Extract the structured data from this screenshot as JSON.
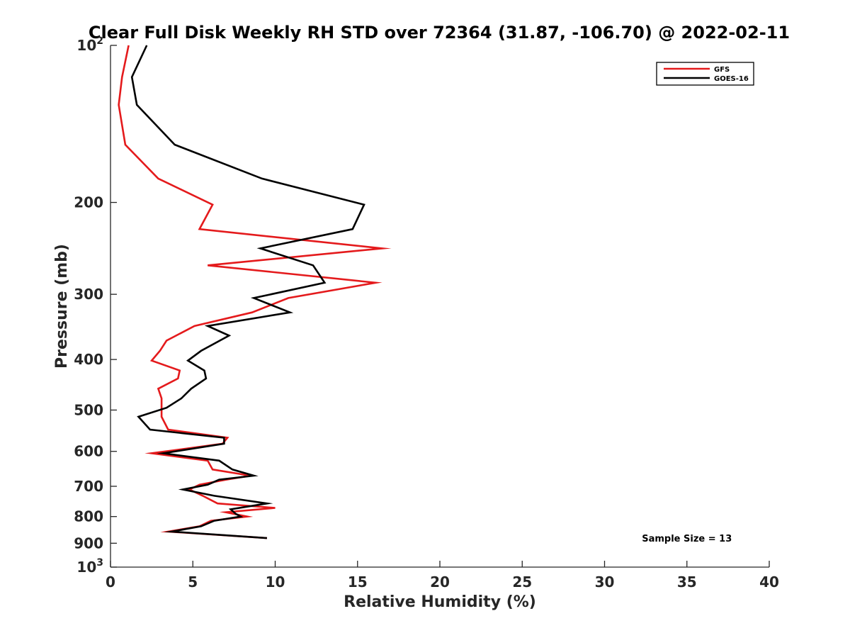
{
  "chart_data": {
    "type": "line",
    "title": "Clear Full Disk Weekly RH STD over 72364 (31.87, -106.70) @ 2022-02-11",
    "xlabel": "Relative Humidity (%)",
    "ylabel": "Pressure (mb)",
    "xlim": [
      0,
      40
    ],
    "ylim": [
      100,
      1000
    ],
    "y_scale": "log",
    "y_reversed": true,
    "x_ticks": [
      {
        "value": 0,
        "label": "0"
      },
      {
        "value": 5,
        "label": "5"
      },
      {
        "value": 10,
        "label": "10"
      },
      {
        "value": 15,
        "label": "15"
      },
      {
        "value": 20,
        "label": "20"
      },
      {
        "value": 25,
        "label": "25"
      },
      {
        "value": 30,
        "label": "30"
      },
      {
        "value": 35,
        "label": "35"
      },
      {
        "value": 40,
        "label": "40"
      }
    ],
    "y_ticks": [
      {
        "value": 100,
        "base": "10",
        "exp": "2"
      },
      {
        "value": 200,
        "label": "200"
      },
      {
        "value": 300,
        "label": "300"
      },
      {
        "value": 400,
        "label": "400"
      },
      {
        "value": 500,
        "label": "500"
      },
      {
        "value": 600,
        "label": "600"
      },
      {
        "value": 700,
        "label": "700"
      },
      {
        "value": 800,
        "label": "800"
      },
      {
        "value": 900,
        "label": "900"
      },
      {
        "value": 1000,
        "base": "10",
        "exp": "3"
      }
    ],
    "legend_position": "top-right",
    "grid": false,
    "series": [
      {
        "name": "GFS",
        "color": "#e41a1c",
        "points": [
          [
            1.1,
            100
          ],
          [
            0.7,
            115
          ],
          [
            0.5,
            130
          ],
          [
            0.9,
            155
          ],
          [
            2.9,
            180
          ],
          [
            6.2,
            202
          ],
          [
            5.4,
            225
          ],
          [
            16.5,
            245
          ],
          [
            5.9,
            264
          ],
          [
            16.1,
            285
          ],
          [
            10.8,
            305
          ],
          [
            8.6,
            325
          ],
          [
            5.1,
            345
          ],
          [
            3.4,
            368
          ],
          [
            3.0,
            385
          ],
          [
            2.5,
            402
          ],
          [
            4.2,
            420
          ],
          [
            4.1,
            435
          ],
          [
            2.9,
            455
          ],
          [
            3.1,
            475
          ],
          [
            3.1,
            495
          ],
          [
            3.1,
            515
          ],
          [
            3.5,
            545
          ],
          [
            7.1,
            565
          ],
          [
            6.8,
            580
          ],
          [
            2.5,
            605
          ],
          [
            5.9,
            625
          ],
          [
            6.2,
            650
          ],
          [
            8.5,
            668
          ],
          [
            7.0,
            680
          ],
          [
            5.4,
            695
          ],
          [
            4.8,
            710
          ],
          [
            5.6,
            730
          ],
          [
            6.5,
            755
          ],
          [
            10.0,
            770
          ],
          [
            7.0,
            785
          ],
          [
            8.3,
            800
          ],
          [
            6.1,
            815
          ],
          [
            5.4,
            835
          ],
          [
            3.5,
            855
          ],
          [
            9.5,
            880
          ]
        ]
      },
      {
        "name": "GOES-16",
        "color": "#000000",
        "points": [
          [
            2.2,
            100
          ],
          [
            1.3,
            115
          ],
          [
            1.6,
            130
          ],
          [
            3.9,
            155
          ],
          [
            9.2,
            180
          ],
          [
            15.4,
            202
          ],
          [
            14.7,
            225
          ],
          [
            9.1,
            245
          ],
          [
            12.3,
            264
          ],
          [
            13.0,
            285
          ],
          [
            8.7,
            305
          ],
          [
            10.9,
            325
          ],
          [
            5.9,
            345
          ],
          [
            7.2,
            360
          ],
          [
            5.5,
            385
          ],
          [
            4.7,
            402
          ],
          [
            5.7,
            420
          ],
          [
            5.8,
            435
          ],
          [
            4.9,
            455
          ],
          [
            4.3,
            475
          ],
          [
            3.4,
            495
          ],
          [
            1.7,
            515
          ],
          [
            2.4,
            545
          ],
          [
            6.9,
            565
          ],
          [
            6.9,
            580
          ],
          [
            3.2,
            605
          ],
          [
            6.6,
            625
          ],
          [
            7.4,
            650
          ],
          [
            8.7,
            668
          ],
          [
            6.6,
            680
          ],
          [
            5.9,
            695
          ],
          [
            4.4,
            710
          ],
          [
            6.3,
            730
          ],
          [
            9.5,
            755
          ],
          [
            7.3,
            775
          ],
          [
            7.6,
            790
          ],
          [
            7.9,
            800
          ],
          [
            6.3,
            815
          ],
          [
            5.5,
            835
          ],
          [
            3.7,
            855
          ],
          [
            9.5,
            880
          ]
        ]
      }
    ],
    "annotations": [
      {
        "text": "Sample Size = 13",
        "x": 35,
        "y": 880
      }
    ]
  }
}
